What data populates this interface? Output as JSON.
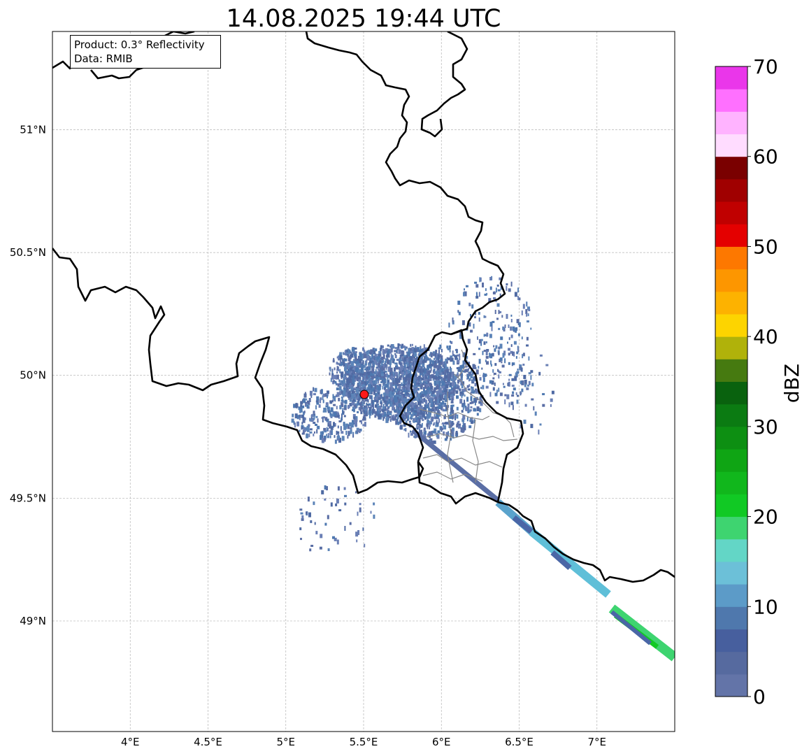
{
  "chart_data": {
    "type": "map",
    "title": "14.08.2025 19:44 UTC",
    "info": {
      "product": "Product: 0.3° Reflectivity",
      "data": "Data: RMIB"
    },
    "lon_ticks": [
      "4°E",
      "4.5°E",
      "5°E",
      "5.5°E",
      "6°E",
      "6.5°E",
      "7°E"
    ],
    "lat_ticks": [
      "51°N",
      "50.5°N",
      "50°N",
      "49.5°N",
      "49°N"
    ],
    "lon_range": [
      3.5,
      7.5
    ],
    "lat_range": [
      48.55,
      51.4
    ],
    "grid": true,
    "radar_site": {
      "lon": 5.5,
      "lat": 49.91,
      "color": "#ff1a1a"
    },
    "colorbar": {
      "label": "dBZ",
      "min": 0,
      "max": 70,
      "step": 2.5,
      "tick_labels": [
        "0",
        "10",
        "20",
        "30",
        "40",
        "50",
        "60",
        "70"
      ],
      "colors": [
        "#6374a8",
        "#566a9f",
        "#475f9e",
        "#4f78ad",
        "#5c9bc8",
        "#6cc0d8",
        "#63d6c6",
        "#3ed470",
        "#11c924",
        "#11b71c",
        "#0fa514",
        "#0d8f12",
        "#0b7b12",
        "#09620e",
        "#467a10",
        "#b0b20a",
        "#fdd400",
        "#fdb200",
        "#fd9600",
        "#fd7800",
        "#e40000",
        "#c00000",
        "#a00000",
        "#7a0000",
        "#ffdcff",
        "#ffb3ff",
        "#ff70ff",
        "#ea36ea"
      ]
    }
  }
}
